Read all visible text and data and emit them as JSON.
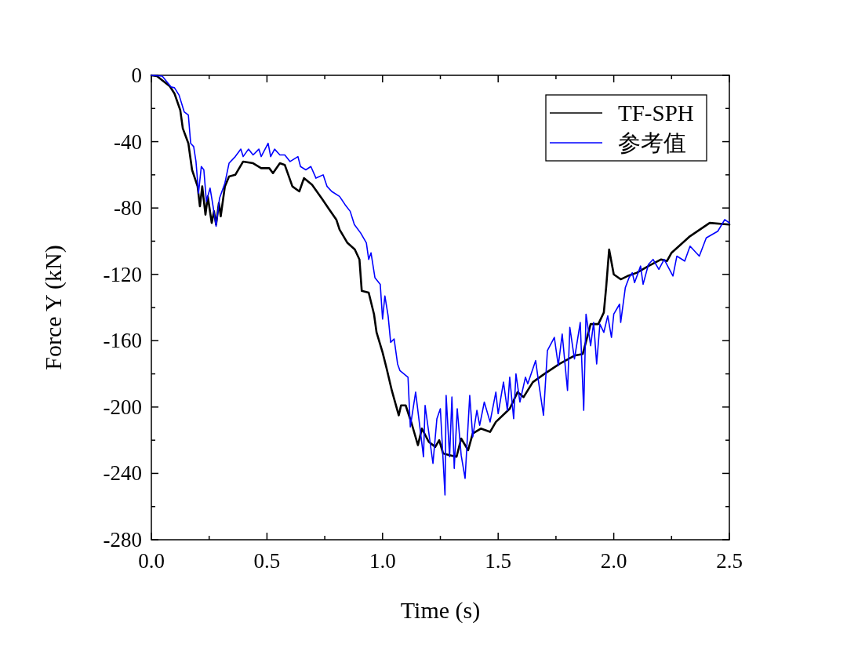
{
  "chart_data": {
    "type": "line",
    "xlabel": "Time (s)",
    "ylabel": "Force Y (kN)",
    "xlim": [
      0,
      2.5
    ],
    "ylim": [
      -280,
      0
    ],
    "xticks": [
      {
        "value": 0,
        "label": "0.0"
      },
      {
        "value": 0.25,
        "label": null
      },
      {
        "value": 0.5,
        "label": "0.5"
      },
      {
        "value": 0.75,
        "label": null
      },
      {
        "value": 1,
        "label": "1.0"
      },
      {
        "value": 1.25,
        "label": null
      },
      {
        "value": 1.5,
        "label": "1.5"
      },
      {
        "value": 1.75,
        "label": null
      },
      {
        "value": 2,
        "label": "2.0"
      },
      {
        "value": 2.25,
        "label": null
      },
      {
        "value": 2.5,
        "label": "2.5"
      }
    ],
    "yticks": [
      0,
      {
        "value": -20,
        "label": null
      },
      -40,
      {
        "value": -60,
        "label": null
      },
      -80,
      {
        "value": -100,
        "label": null
      },
      -120,
      {
        "value": -140,
        "label": null
      },
      -160,
      {
        "value": -180,
        "label": null
      },
      -200,
      {
        "value": -220,
        "label": null
      },
      -240,
      {
        "value": -260,
        "label": null
      },
      -280
    ],
    "legend": "top right",
    "grid": false,
    "marker": "none",
    "line_style": "solid",
    "series": [
      {
        "name": "TF-SPH",
        "color": "#000000",
        "x": [
          0,
          0.024,
          0.08,
          0.1,
          0.125,
          0.136,
          0.16,
          0.176,
          0.2,
          0.21,
          0.22,
          0.234,
          0.244,
          0.261,
          0.271,
          0.28,
          0.292,
          0.3,
          0.318,
          0.336,
          0.363,
          0.397,
          0.44,
          0.475,
          0.51,
          0.526,
          0.556,
          0.577,
          0.61,
          0.64,
          0.66,
          0.695,
          0.736,
          0.77,
          0.8,
          0.814,
          0.848,
          0.88,
          0.9,
          0.91,
          0.94,
          0.963,
          0.974,
          1.0,
          1.018,
          1.04,
          1.07,
          1.08,
          1.1,
          1.126,
          1.153,
          1.17,
          1.2,
          1.228,
          1.245,
          1.262,
          1.29,
          1.32,
          1.34,
          1.37,
          1.39,
          1.425,
          1.465,
          1.49,
          1.55,
          1.584,
          1.61,
          1.65,
          1.7,
          1.765,
          1.83,
          1.866,
          1.9,
          1.933,
          1.957,
          1.967,
          1.98,
          2.0,
          2.03,
          2.06,
          2.1,
          2.15,
          2.205,
          2.23,
          2.25,
          2.33,
          2.415,
          2.5
        ],
        "values": [
          0,
          -0.5,
          -6.6,
          -11,
          -21,
          -32,
          -41,
          -57,
          -67,
          -79,
          -67,
          -84,
          -73,
          -89,
          -82,
          -90,
          -77,
          -85,
          -67,
          -61,
          -60,
          -52,
          -53,
          -56,
          -56,
          -59,
          -53,
          -54,
          -67,
          -70,
          -62,
          -66,
          -74,
          -81,
          -87,
          -93,
          -101,
          -105,
          -111,
          -130,
          -131,
          -144,
          -155,
          -167,
          -177,
          -190,
          -205,
          -199,
          -199,
          -210,
          -223,
          -213,
          -221,
          -224,
          -220,
          -228,
          -229,
          -230,
          -219,
          -226,
          -216,
          -213,
          -215,
          -209,
          -201,
          -191,
          -194,
          -185,
          -180,
          -174,
          -169,
          -168,
          -150,
          -150,
          -143,
          -128,
          -105,
          -120,
          -123,
          -121,
          -119,
          -115,
          -111,
          -112,
          -107,
          -97,
          -89,
          -90
        ]
      },
      {
        "name": "参考值",
        "color": "#0000ff",
        "x": [
          0,
          0.047,
          0.085,
          0.1,
          0.12,
          0.142,
          0.16,
          0.17,
          0.183,
          0.193,
          0.204,
          0.216,
          0.227,
          0.238,
          0.254,
          0.267,
          0.28,
          0.295,
          0.318,
          0.336,
          0.363,
          0.387,
          0.397,
          0.42,
          0.44,
          0.465,
          0.475,
          0.505,
          0.516,
          0.533,
          0.556,
          0.577,
          0.6,
          0.634,
          0.645,
          0.668,
          0.69,
          0.712,
          0.743,
          0.76,
          0.78,
          0.814,
          0.838,
          0.86,
          0.878,
          0.905,
          0.93,
          0.94,
          0.95,
          0.967,
          0.99,
          1.0,
          1.01,
          1.024,
          1.035,
          1.05,
          1.065,
          1.075,
          1.11,
          1.12,
          1.143,
          1.177,
          1.184,
          1.218,
          1.235,
          1.25,
          1.27,
          1.275,
          1.29,
          1.3,
          1.31,
          1.323,
          1.34,
          1.357,
          1.377,
          1.39,
          1.408,
          1.42,
          1.44,
          1.465,
          1.49,
          1.5,
          1.523,
          1.54,
          1.55,
          1.567,
          1.577,
          1.594,
          1.618,
          1.628,
          1.662,
          1.675,
          1.696,
          1.713,
          1.743,
          1.76,
          1.777,
          1.8,
          1.81,
          1.83,
          1.855,
          1.87,
          1.88,
          1.9,
          1.913,
          1.926,
          1.94,
          1.957,
          1.974,
          1.99,
          2.0,
          2.025,
          2.03,
          2.05,
          2.066,
          2.08,
          2.09,
          2.116,
          2.127,
          2.15,
          2.17,
          2.195,
          2.218,
          2.256,
          2.273,
          2.307,
          2.33,
          2.37,
          2.4,
          2.45,
          2.48,
          2.5
        ],
        "values": [
          0,
          -0.5,
          -7,
          -7.5,
          -12,
          -22,
          -24,
          -41,
          -43,
          -52,
          -71,
          -55,
          -57,
          -76,
          -68,
          -79,
          -91,
          -74,
          -65,
          -53,
          -49,
          -44.5,
          -49,
          -44.5,
          -48,
          -44.5,
          -49,
          -41,
          -49,
          -44.5,
          -48,
          -48,
          -52,
          -49,
          -55,
          -57,
          -55,
          -62,
          -60,
          -67,
          -70,
          -73,
          -78,
          -82,
          -90,
          -95,
          -101,
          -111,
          -107,
          -122,
          -126,
          -147,
          -133,
          -145,
          -161,
          -159,
          -174,
          -178,
          -182,
          -212,
          -191,
          -230,
          -199,
          -234,
          -207,
          -201,
          -253,
          -193,
          -230,
          -194,
          -237,
          -201,
          -229,
          -243,
          -193,
          -218,
          -202,
          -211,
          -197,
          -209,
          -191,
          -204,
          -185,
          -202,
          -182,
          -207,
          -180,
          -197,
          -182,
          -186,
          -172,
          -185,
          -205,
          -166,
          -158,
          -175,
          -156,
          -190,
          -152,
          -171,
          -149,
          -202,
          -144,
          -163,
          -149,
          -174,
          -150,
          -155,
          -145,
          -158,
          -144,
          -138,
          -149,
          -128,
          -122,
          -119,
          -125,
          -115,
          -126,
          -114,
          -111,
          -117,
          -111,
          -121,
          -109,
          -112,
          -103,
          -109,
          -98,
          -94,
          -87,
          -89
        ]
      }
    ]
  }
}
